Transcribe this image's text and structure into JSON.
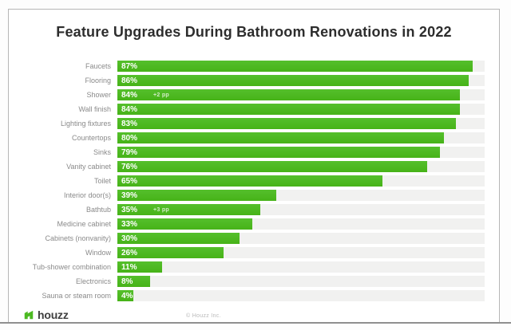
{
  "title": "Feature Upgrades During Bathroom Renovations in 2022",
  "chart_data": {
    "type": "bar",
    "orientation": "horizontal",
    "title": "Feature Upgrades During Bathroom Renovations in 2022",
    "categories": [
      "Faucets",
      "Flooring",
      "Shower",
      "Wall finish",
      "Lighting fixtures",
      "Countertops",
      "Sinks",
      "Vanity cabinet",
      "Toilet",
      "Interior door(s)",
      "Bathtub",
      "Medicine cabinet",
      "Cabinets (nonvanity)",
      "Window",
      "Tub-shower combination",
      "Electronics",
      "Sauna or steam room"
    ],
    "values": [
      87,
      86,
      84,
      84,
      83,
      80,
      79,
      76,
      65,
      39,
      35,
      33,
      30,
      26,
      11,
      8,
      4
    ],
    "value_suffix": "%",
    "annotations": [
      {
        "category": "Shower",
        "text": "+2 pp"
      },
      {
        "category": "Bathtub",
        "text": "+3 pp"
      }
    ],
    "xlim": [
      0,
      90
    ],
    "grid": false,
    "legend": "none",
    "bar_color": "#4cb922",
    "track_color": "#f1f1f0"
  },
  "footer": {
    "logo_icon": "houzz-icon",
    "logo_brand": "houzz",
    "copyright": "© Houzz Inc."
  },
  "colors": {
    "accent_green": "#4cb922",
    "title_text": "#2d2d2d",
    "category_text": "#8a8a8a",
    "value_text": "#ffffff"
  }
}
